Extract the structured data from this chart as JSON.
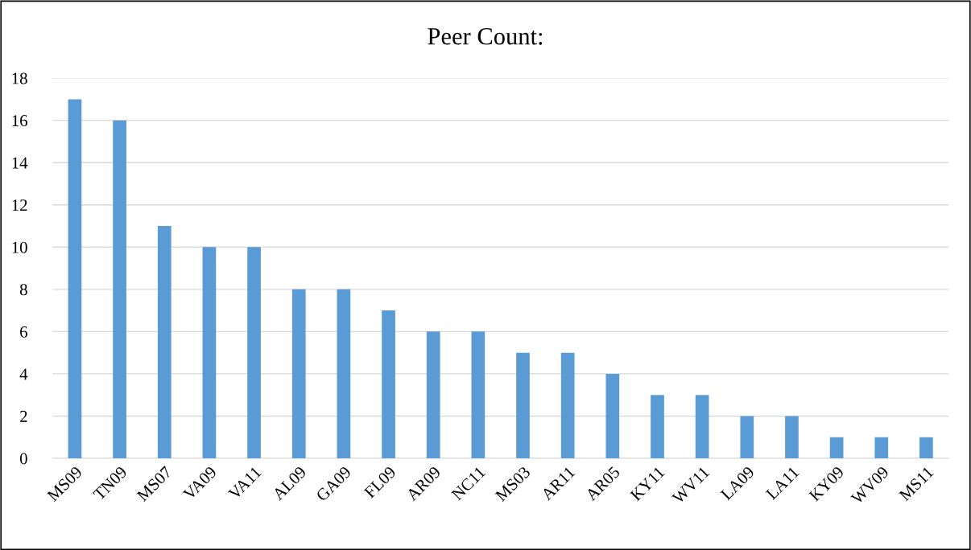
{
  "chart_data": {
    "type": "bar",
    "title": "Peer Count:",
    "categories": [
      "MS09",
      "TN09",
      "MS07",
      "VA09",
      "VA11",
      "AL09",
      "GA09",
      "FL09",
      "AR09",
      "NC11",
      "MS03",
      "AR11",
      "AR05",
      "KY11",
      "WV11",
      "LA09",
      "LA11",
      "KY09",
      "WV09",
      "MS11"
    ],
    "values": [
      17,
      16,
      11,
      10,
      10,
      8,
      8,
      7,
      6,
      6,
      5,
      5,
      4,
      3,
      3,
      2,
      2,
      1,
      1,
      1
    ],
    "color": "#5b9bd5",
    "ylim": [
      0,
      18
    ],
    "yticks": [
      0,
      2,
      4,
      6,
      8,
      10,
      12,
      14,
      16,
      18
    ],
    "grid": "y",
    "legend": false
  }
}
